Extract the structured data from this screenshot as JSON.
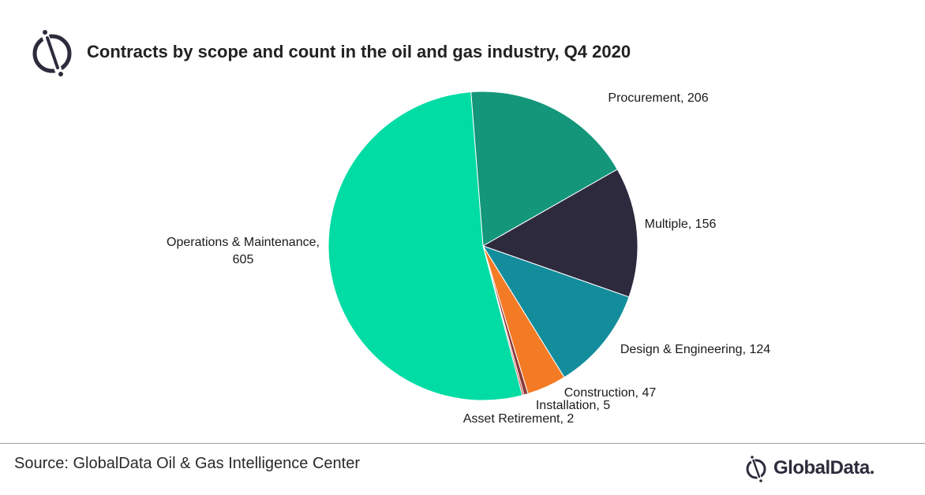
{
  "header": {
    "title": "Contracts by scope and count in the oil and gas industry, Q4 2020"
  },
  "chart_data": {
    "type": "pie",
    "title": "Contracts by scope and count in the oil and gas industry, Q4 2020",
    "slices": [
      {
        "label": "Procurement",
        "value": 206,
        "color": "#13967a",
        "data_label": "Procurement, 206"
      },
      {
        "label": "Multiple",
        "value": 156,
        "color": "#2d2a3e",
        "data_label": "Multiple, 156"
      },
      {
        "label": "Design & Engineering",
        "value": 124,
        "color": "#138d9c",
        "data_label": "Design & Engineering, 124"
      },
      {
        "label": "Construction",
        "value": 47,
        "color": "#f47b26",
        "data_label": "Construction, 47"
      },
      {
        "label": "Installation",
        "value": 5,
        "color": "#8b3a3a",
        "data_label": "Installation, 5"
      },
      {
        "label": "Asset Retirement",
        "value": 2,
        "color": "#c0392b",
        "data_label": "Asset Retirement, 2"
      },
      {
        "label": "Operations & Maintenance",
        "value": 605,
        "color": "#00dca4",
        "data_label": [
          "Operations & Maintenance,",
          "605"
        ]
      }
    ],
    "legend": "none"
  },
  "footer": {
    "source": "Source: GlobalData Oil & Gas Intelligence Center",
    "brand": "GlobalData."
  },
  "icons": {
    "header_logo": "globaldata-logo-icon",
    "footer_logo": "globaldata-logo-icon"
  },
  "colors": {
    "title_text": "#222222",
    "logo_ink": "#2c2c3c"
  }
}
